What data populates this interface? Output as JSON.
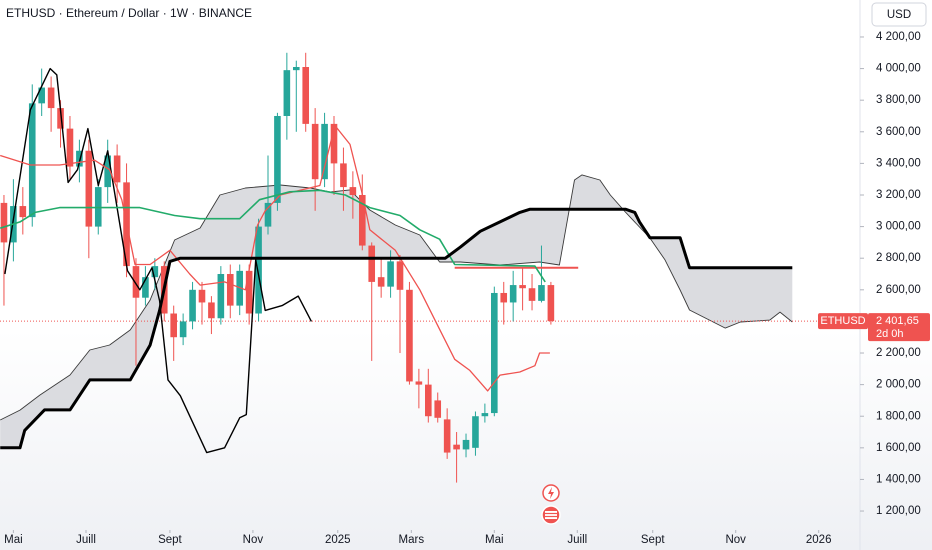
{
  "chart_data": {
    "type": "candlestick",
    "title": "ETHUSD · Ethereum / Dollar · 1W · BINANCE",
    "currency_button": "USD",
    "up_color": "#26a69a",
    "down_color": "#ef5350",
    "x": [
      0,
      1,
      2,
      3,
      4,
      5,
      6,
      7,
      8,
      9,
      10,
      11,
      12,
      13,
      14,
      15,
      16,
      17,
      18,
      19,
      20,
      21,
      22,
      23,
      24,
      25,
      26,
      27,
      28,
      29,
      30,
      31,
      32,
      33,
      34,
      35,
      36,
      37,
      38,
      39,
      40,
      41,
      42,
      43,
      44,
      45,
      46,
      47,
      48,
      49,
      50,
      51,
      52,
      53,
      54,
      55,
      56,
      57,
      58
    ],
    "open": [
      3150,
      2900,
      3130,
      3060,
      3780,
      3880,
      3750,
      3620,
      3380,
      3480,
      3000,
      3250,
      3450,
      3280,
      2750,
      2550,
      2680,
      2750,
      2450,
      2300,
      2400,
      2600,
      2520,
      2420,
      2700,
      2500,
      2720,
      2450,
      3000,
      3150,
      3700,
      3990,
      4010,
      3650,
      3300,
      3650,
      3400,
      3250,
      3200,
      2880,
      2680,
      2620,
      2780,
      2600,
      2020,
      2000,
      1900,
      1780,
      1620,
      1590,
      1600,
      1800,
      1820,
      2580,
      2520,
      2630,
      2610,
      2530,
      2630
    ],
    "high": [
      3200,
      3300,
      3250,
      3900,
      4000,
      3950,
      3800,
      3700,
      3550,
      3550,
      3300,
      3550,
      3520,
      3400,
      2800,
      2750,
      2800,
      2780,
      2500,
      2450,
      2650,
      2650,
      2560,
      2750,
      2760,
      2760,
      2760,
      3050,
      3450,
      3720,
      4100,
      4050,
      4100,
      3750,
      3720,
      3700,
      3500,
      3350,
      3330,
      2900,
      2800,
      2850,
      2820,
      2650,
      2100,
      2100,
      1950,
      1850,
      1700,
      1690,
      1830,
      1880,
      2620,
      2650,
      2720,
      2740,
      2700,
      2880,
      2650
    ],
    "low": [
      2500,
      2780,
      2950,
      3000,
      3700,
      3600,
      3500,
      3300,
      3280,
      2800,
      2950,
      3150,
      3150,
      2680,
      2120,
      2500,
      2600,
      2400,
      2150,
      2250,
      2350,
      2380,
      2320,
      2380,
      2420,
      2440,
      2380,
      2400,
      2950,
      3100,
      3550,
      3600,
      3600,
      3100,
      3250,
      3200,
      3100,
      3050,
      2850,
      2150,
      2550,
      2550,
      2200,
      2000,
      1850,
      1760,
      1760,
      1530,
      1380,
      1540,
      1550,
      1760,
      1800,
      2380,
      2400,
      2470,
      2470,
      2520,
      2380
    ],
    "close": [
      2900,
      3130,
      3060,
      3780,
      3880,
      3750,
      3620,
      3380,
      3480,
      3000,
      3250,
      3450,
      3280,
      2750,
      2550,
      2680,
      2750,
      2450,
      2300,
      2400,
      2600,
      2520,
      2420,
      2700,
      2500,
      2720,
      2450,
      3000,
      3150,
      3700,
      3990,
      4010,
      3650,
      3300,
      3650,
      3400,
      3250,
      3200,
      2880,
      2650,
      2620,
      2780,
      2600,
      2020,
      2000,
      1800,
      1790,
      1570,
      1590,
      1650,
      1800,
      1820,
      2580,
      2520,
      2630,
      2610,
      2530,
      2630,
      2401.65
    ],
    "lines": [
      {
        "color": "#000000",
        "width": 1.4,
        "x": [
          0.1,
          2.8,
          4.9,
          5.6,
          6.8,
          7.8,
          8.9,
          10,
          11,
          13.1,
          14.4,
          15.7,
          16.5,
          17.4,
          18.7,
          21.5,
          23.4,
          25,
          25.7,
          26.7,
          27.7,
          29.5,
          31.2,
          32.6
        ],
        "values": [
          2700,
          3740,
          4000,
          3960,
          3280,
          3360,
          3620,
          3260,
          3480,
          2720,
          2600,
          2740,
          2530,
          2030,
          1930,
          1570,
          1600,
          1790,
          1810,
          2790,
          2470,
          2500,
          2560,
          2400
        ]
      },
      {
        "color": "#ef5350",
        "width": 1.3,
        "x": [
          -0.4,
          2.8,
          5.9,
          9.6,
          11.2,
          12.5,
          13.9,
          15.5,
          17.6,
          19.7,
          20.8,
          23.4,
          25.6,
          26.9,
          27.7,
          29.3,
          33.5,
          35.1,
          36.7,
          37.9,
          38.8,
          41.5,
          44.1,
          46.2,
          47.8,
          49.4,
          51.3,
          52.6,
          54.7,
          56.3,
          56.8,
          57.9
        ],
        "values": [
          3450,
          3390,
          3390,
          3420,
          3360,
          3170,
          2760,
          2760,
          2850,
          2700,
          2630,
          2650,
          2600,
          3010,
          3100,
          3200,
          3260,
          3640,
          3520,
          3230,
          2980,
          2850,
          2600,
          2350,
          2160,
          2090,
          1960,
          2060,
          2080,
          2120,
          2200,
          2200
        ]
      },
      {
        "color": "#ef5350",
        "width": 2,
        "x": [
          47.8,
          60.9
        ],
        "values": [
          2740,
          2740
        ]
      },
      {
        "color": "#22ab6a",
        "width": 1.6,
        "x": [
          -0.4,
          1.7,
          3.3,
          5.9,
          14.4,
          18.1,
          20.8,
          25,
          27.1,
          30.3,
          33.5,
          36.2,
          38.8,
          42,
          44.1,
          46.2,
          47.8,
          56.3,
          57.4
        ],
        "values": [
          2990,
          3030,
          3090,
          3120,
          3120,
          3070,
          3050,
          3050,
          3170,
          3220,
          3230,
          3200,
          3120,
          3070,
          2980,
          2920,
          2760,
          2750,
          2650
        ]
      }
    ],
    "cloud": {
      "fill": "#d5d6db",
      "span_a": {
        "color": "#3a3a3a",
        "width": 0.9,
        "x": [
          -0.4,
          1.7,
          3.8,
          7.0,
          9.1,
          11.2,
          13.4,
          15.5,
          18.1,
          20.8,
          22.9,
          25.6,
          29.3,
          32.5,
          34.6,
          36.7,
          38.8,
          41.5,
          44.1,
          46.2,
          48.4,
          52.6,
          56.8,
          58.9,
          60.5,
          61.3,
          63.2,
          64.3,
          65.9,
          68.5,
          70.1,
          71.7,
          72.7,
          76.5,
          78.1,
          81.2,
          82.3,
          83.6
        ],
        "values": [
          1776,
          1839,
          1934,
          2061,
          2219,
          2251,
          2346,
          2535,
          2915,
          2991,
          3200,
          3244,
          3263,
          3244,
          3219,
          3232,
          3105,
          3010,
          2947,
          2776,
          2776,
          2757,
          2776,
          2757,
          3295,
          3327,
          3295,
          3200,
          3092,
          2928,
          2789,
          2599,
          2472,
          2358,
          2396,
          2408,
          2459,
          2396
        ]
      },
      "span_b": {
        "color": "#000000",
        "width": 3,
        "x": [
          -0.4,
          1.7,
          2.2,
          4.3,
          7.0,
          9.1,
          13.4,
          15.5,
          16.5,
          17.6,
          18.7,
          46.8,
          48.4,
          50.5,
          52.6,
          54.7,
          55.8,
          65.9,
          66.9,
          67.4,
          68.5,
          71.7,
          72.7,
          83.6
        ],
        "values": [
          1600,
          1600,
          1710,
          1840,
          1840,
          2030,
          2030,
          2250,
          2470,
          2780,
          2800,
          2800,
          2870,
          2970,
          3030,
          3090,
          3110,
          3110,
          3090,
          3030,
          2930,
          2930,
          2740,
          2740
        ]
      }
    },
    "price_marker": {
      "symbol": "ETHUSD",
      "value": 2401.65,
      "label": "2 401,65",
      "countdown": "2d 0h"
    },
    "xlim": [
      -0.42,
      90.78
    ],
    "xticks": [
      {
        "value": 1.0,
        "label": "Mai"
      },
      {
        "value": 8.7,
        "label": "Juill"
      },
      {
        "value": 17.6,
        "label": "Sept"
      },
      {
        "value": 26.4,
        "label": "Nov"
      },
      {
        "value": 35.4,
        "label": "2025"
      },
      {
        "value": 43.2,
        "label": "Mars"
      },
      {
        "value": 52.0,
        "label": "Mai"
      },
      {
        "value": 60.8,
        "label": "Juill"
      },
      {
        "value": 68.8,
        "label": "Sept"
      },
      {
        "value": 77.6,
        "label": "Nov"
      },
      {
        "value": 86.4,
        "label": "2026"
      }
    ],
    "ylim": [
      1080,
      4434
    ],
    "yticks": [
      {
        "value": 1200,
        "label": "1 200,00"
      },
      {
        "value": 1400,
        "label": "1 400,00"
      },
      {
        "value": 1600,
        "label": "1 600,00"
      },
      {
        "value": 1800,
        "label": "1 800,00"
      },
      {
        "value": 2000,
        "label": "2 000,00"
      },
      {
        "value": 2200,
        "label": "2 200,00"
      },
      {
        "value": 2400,
        "label": "2 400,00"
      },
      {
        "value": 2600,
        "label": "2 600,00"
      },
      {
        "value": 2800,
        "label": "2 800,00"
      },
      {
        "value": 3000,
        "label": "3 000,00"
      },
      {
        "value": 3200,
        "label": "3 200,00"
      },
      {
        "value": 3400,
        "label": "3 400,00"
      },
      {
        "value": 3600,
        "label": "3 600,00"
      },
      {
        "value": 3800,
        "label": "3 800,00"
      },
      {
        "value": 4000,
        "label": "4 000,00"
      },
      {
        "value": 4200,
        "label": "4 200,00"
      }
    ]
  }
}
